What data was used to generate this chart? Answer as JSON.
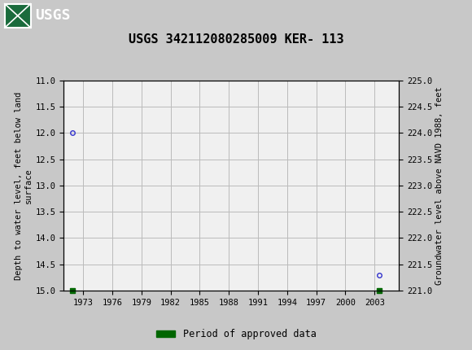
{
  "title": "USGS 342112080285009 KER- 113",
  "title_fontsize": 11,
  "header_bg_color": "#1a6b3c",
  "plot_bg_color": "#f0f0f0",
  "fig_bg_color": "#c8c8c8",
  "ylabel_left": "Depth to water level, feet below land\nsurface",
  "ylabel_right": "Groundwater level above NAVD 1988, feet",
  "ylim_left": [
    11.0,
    15.0
  ],
  "ylim_right": [
    221.0,
    225.0
  ],
  "xlim": [
    1971.0,
    2005.5
  ],
  "xticks": [
    1973,
    1976,
    1979,
    1982,
    1985,
    1988,
    1991,
    1994,
    1997,
    2000,
    2003
  ],
  "yticks_left": [
    11.0,
    11.5,
    12.0,
    12.5,
    13.0,
    13.5,
    14.0,
    14.5,
    15.0
  ],
  "yticks_right": [
    221.0,
    221.5,
    222.0,
    222.5,
    223.0,
    223.5,
    224.0,
    224.5,
    225.0
  ],
  "data_points": [
    {
      "year": 1971.9,
      "depth": 12.0
    },
    {
      "year": 2003.5,
      "depth": 14.7
    }
  ],
  "green_bar_points": [
    {
      "year": 1971.9,
      "depth": 15.0
    },
    {
      "year": 2003.5,
      "depth": 15.0
    }
  ],
  "point_color": "#3333cc",
  "point_marker": "o",
  "point_size": 4,
  "point_linewidth": 1.0,
  "green_bar_color": "#006600",
  "green_bar_size": 5,
  "green_bar_marker": "s",
  "grid_color": "#bbbbbb",
  "grid_linewidth": 0.7,
  "legend_label": "Period of approved data",
  "font_family": "monospace",
  "tick_fontsize": 7.5,
  "label_fontsize": 7.5
}
